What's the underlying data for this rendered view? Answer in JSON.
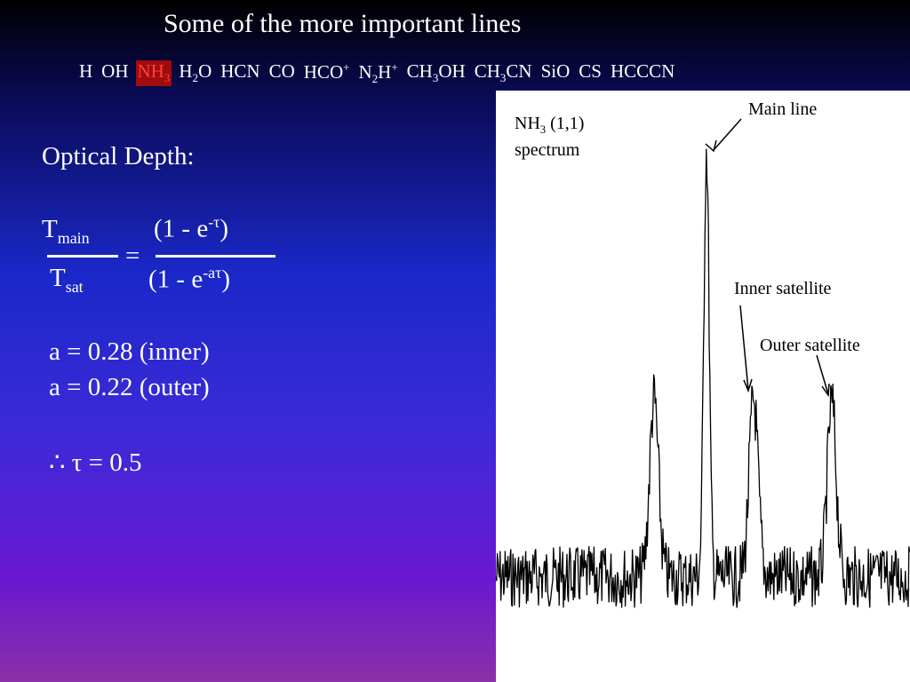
{
  "header": {
    "title": "Some of the more important lines",
    "molecules": [
      [
        "H"
      ],
      [
        "OH"
      ],
      [
        "NH",
        "3"
      ],
      [
        "H",
        "2",
        "O"
      ],
      [
        "HCN"
      ],
      [
        "CO"
      ],
      [
        "HCO",
        "+"
      ],
      [
        "N",
        "2",
        "H",
        "+"
      ],
      [
        "CH",
        "3",
        "OH"
      ],
      [
        "CH",
        "3",
        "CN"
      ],
      [
        "SiO"
      ],
      [
        "CS"
      ],
      [
        "HCCCN"
      ]
    ]
  },
  "body": {
    "heading": "Optical Depth:",
    "equation": {
      "num_left": [
        "T",
        "main"
      ],
      "num_right": [
        "(1 - e",
        "-τ",
        ")"
      ],
      "equals": "=",
      "den_left": [
        "T",
        "sat"
      ],
      "den_right": [
        "(1 - e",
        "-aτ",
        ")"
      ]
    },
    "lines": [
      "a = 0.28 (inner)",
      "a = 0.22 (outer)",
      "∴ τ = 0.5"
    ]
  },
  "figure": {
    "caption": [
      "NH",
      "3",
      " (1,1)",
      "spectrum"
    ],
    "labels": [
      "Main line",
      "Inner satellite",
      "Outer satellite"
    ]
  }
}
